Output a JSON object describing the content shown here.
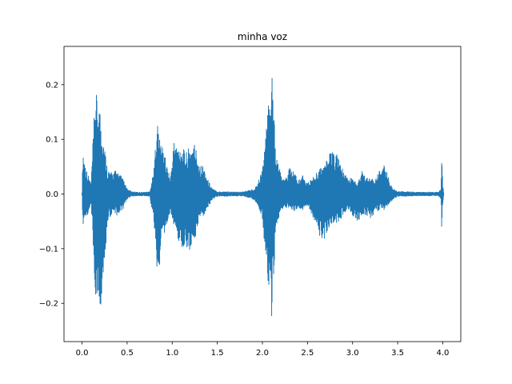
{
  "chart_data": {
    "type": "line",
    "title": "minha voz",
    "xlabel": "",
    "ylabel": "",
    "xlim": [
      -0.2,
      4.2
    ],
    "ylim": [
      -0.27,
      0.27
    ],
    "grid": false,
    "line_color": "#1f77b4",
    "x_ticks": [
      0.0,
      0.5,
      1.0,
      1.5,
      2.0,
      2.5,
      3.0,
      3.5,
      4.0
    ],
    "x_tick_labels": [
      "0.0",
      "0.5",
      "1.0",
      "1.5",
      "2.0",
      "2.5",
      "3.0",
      "3.5",
      "4.0"
    ],
    "y_ticks": [
      -0.2,
      -0.1,
      0.0,
      0.1,
      0.2
    ],
    "y_tick_labels": [
      "−0.2",
      "−0.1",
      "0.0",
      "0.1",
      "0.2"
    ],
    "series": [
      {
        "envelope": {
          "x": [
            0.0,
            0.01,
            0.03,
            0.06,
            0.1,
            0.13,
            0.15,
            0.17,
            0.2,
            0.22,
            0.25,
            0.28,
            0.32,
            0.38,
            0.45,
            0.5,
            0.55,
            0.6,
            0.65,
            0.7,
            0.75,
            0.8,
            0.83,
            0.86,
            0.9,
            0.93,
            0.98,
            1.02,
            1.06,
            1.1,
            1.15,
            1.2,
            1.25,
            1.3,
            1.35,
            1.4,
            1.45,
            1.5,
            1.6,
            1.7,
            1.8,
            1.9,
            1.95,
            2.0,
            2.05,
            2.08,
            2.1,
            2.12,
            2.15,
            2.2,
            2.25,
            2.3,
            2.35,
            2.4,
            2.45,
            2.5,
            2.55,
            2.6,
            2.65,
            2.7,
            2.75,
            2.8,
            2.85,
            2.9,
            2.95,
            3.0,
            3.05,
            3.1,
            3.15,
            3.2,
            3.25,
            3.3,
            3.35,
            3.4,
            3.45,
            3.5,
            3.6,
            3.7,
            3.8,
            3.9,
            3.95,
            3.98,
            3.99,
            4.0,
            4.01
          ],
          "upper": [
            0.005,
            0.087,
            0.06,
            0.04,
            0.02,
            0.13,
            0.195,
            0.17,
            0.16,
            0.13,
            0.09,
            0.05,
            0.04,
            0.045,
            0.03,
            0.01,
            0.005,
            0.004,
            0.004,
            0.004,
            0.005,
            0.05,
            0.145,
            0.1,
            0.09,
            0.06,
            0.03,
            0.1,
            0.09,
            0.09,
            0.075,
            0.09,
            0.095,
            0.06,
            0.05,
            0.025,
            0.01,
            0.005,
            0.005,
            0.004,
            0.005,
            0.01,
            0.02,
            0.05,
            0.13,
            0.2,
            0.245,
            0.19,
            0.08,
            0.04,
            0.025,
            0.05,
            0.04,
            0.025,
            0.035,
            0.02,
            0.03,
            0.04,
            0.05,
            0.06,
            0.075,
            0.08,
            0.07,
            0.04,
            0.03,
            0.03,
            0.02,
            0.045,
            0.03,
            0.03,
            0.025,
            0.045,
            0.055,
            0.03,
            0.01,
            0.005,
            0.005,
            0.004,
            0.004,
            0.004,
            0.004,
            0.01,
            0.07,
            0.02,
            0.004
          ],
          "lower": [
            -0.005,
            -0.07,
            -0.05,
            -0.04,
            -0.02,
            -0.12,
            -0.2,
            -0.19,
            -0.22,
            -0.2,
            -0.14,
            -0.05,
            -0.04,
            -0.04,
            -0.03,
            -0.01,
            -0.005,
            -0.004,
            -0.004,
            -0.004,
            -0.005,
            -0.06,
            -0.15,
            -0.13,
            -0.08,
            -0.06,
            -0.03,
            -0.06,
            -0.08,
            -0.1,
            -0.1,
            -0.11,
            -0.09,
            -0.05,
            -0.04,
            -0.025,
            -0.01,
            -0.005,
            -0.005,
            -0.004,
            -0.005,
            -0.01,
            -0.02,
            -0.05,
            -0.14,
            -0.2,
            -0.245,
            -0.17,
            -0.09,
            -0.03,
            -0.025,
            -0.03,
            -0.035,
            -0.025,
            -0.03,
            -0.02,
            -0.04,
            -0.055,
            -0.09,
            -0.08,
            -0.06,
            -0.055,
            -0.05,
            -0.04,
            -0.03,
            -0.04,
            -0.055,
            -0.04,
            -0.04,
            -0.045,
            -0.035,
            -0.03,
            -0.03,
            -0.02,
            -0.01,
            -0.005,
            -0.005,
            -0.004,
            -0.004,
            -0.004,
            -0.004,
            -0.01,
            -0.075,
            -0.02,
            -0.004
          ]
        }
      }
    ]
  }
}
